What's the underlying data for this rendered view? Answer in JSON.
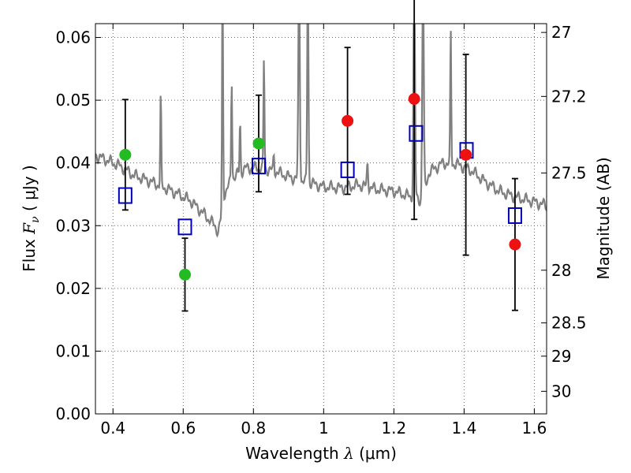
{
  "chart_data": {
    "type": "scatter",
    "xlabel_main": "Wavelength  ",
    "xlabel_lambda": "λ",
    "xlabel_unit": " (μm)",
    "ylabel_main": "Flux  ",
    "ylabel_F": "F",
    "ylabel_nu": "ν",
    "ylabel_unit": " ( μJy )",
    "y2label": "Magnitude (AB)",
    "xlim": [
      0.35,
      1.635
    ],
    "ylim": [
      0.0,
      0.0622
    ],
    "grid": true,
    "x_ticks": [
      0.4,
      0.6,
      0.8,
      1.0,
      1.2,
      1.4,
      1.6
    ],
    "x_tick_labels": [
      "0.4",
      "0.6",
      "0.8",
      "1",
      "1.2",
      "1.4",
      "1.6"
    ],
    "y_ticks": [
      0.0,
      0.01,
      0.02,
      0.03,
      0.04,
      0.05,
      0.06
    ],
    "y_tick_labels": [
      "0.00",
      "0.01",
      "0.02",
      "0.03",
      "0.04",
      "0.05",
      "0.06"
    ],
    "y2_ticks": [
      {
        "flux": 0.0608,
        "label": "27"
      },
      {
        "flux": 0.0506,
        "label": "27.2"
      },
      {
        "flux": 0.0384,
        "label": "27.5"
      },
      {
        "flux": 0.0229,
        "label": "28"
      },
      {
        "flux": 0.0145,
        "label": "28.5"
      },
      {
        "flux": 0.0092,
        "label": "29"
      },
      {
        "flux": 0.0036,
        "label": "30"
      }
    ],
    "colors": {
      "model": "#808080",
      "green": "#22bb22",
      "red": "#ee1111",
      "square": "#0000bb",
      "errorbar": "#000000",
      "grid": "#666666"
    },
    "observed_points": [
      {
        "x": 0.435,
        "y": 0.0413,
        "yerr_low": 0.0088,
        "yerr_high": 0.0088,
        "color": "green"
      },
      {
        "x": 0.605,
        "y": 0.0222,
        "yerr_low": 0.0058,
        "yerr_high": 0.0058,
        "color": "green"
      },
      {
        "x": 0.815,
        "y": 0.0431,
        "yerr_low": 0.0077,
        "yerr_high": 0.0077,
        "color": "green"
      },
      {
        "x": 1.068,
        "y": 0.0467,
        "yerr_low": 0.0117,
        "yerr_high": 0.0117,
        "color": "red"
      },
      {
        "x": 1.258,
        "y": 0.0502,
        "yerr_low": 0.0192,
        "yerr_high": 0.0192,
        "color": "red"
      },
      {
        "x": 1.405,
        "y": 0.0413,
        "yerr_low": 0.016,
        "yerr_high": 0.016,
        "color": "red"
      },
      {
        "x": 1.545,
        "y": 0.027,
        "yerr_low": 0.0105,
        "yerr_high": 0.0105,
        "color": "red"
      }
    ],
    "model_points": [
      {
        "x": 0.435,
        "y": 0.0348
      },
      {
        "x": 0.605,
        "y": 0.0298
      },
      {
        "x": 0.815,
        "y": 0.0395
      },
      {
        "x": 1.068,
        "y": 0.0389
      },
      {
        "x": 1.263,
        "y": 0.0447
      },
      {
        "x": 1.407,
        "y": 0.042
      },
      {
        "x": 1.545,
        "y": 0.0316
      }
    ],
    "model_spectrum": {
      "base": [
        [
          0.35,
          0.0412
        ],
        [
          0.38,
          0.0405
        ],
        [
          0.42,
          0.0395
        ],
        [
          0.46,
          0.038
        ],
        [
          0.5,
          0.0372
        ],
        [
          0.54,
          0.0362
        ],
        [
          0.58,
          0.0352
        ],
        [
          0.62,
          0.034
        ],
        [
          0.66,
          0.0318
        ],
        [
          0.69,
          0.03
        ],
        [
          0.7,
          0.029
        ],
        [
          0.708,
          0.0312
        ],
        [
          0.715,
          0.0348
        ],
        [
          0.74,
          0.0376
        ],
        [
          0.78,
          0.0392
        ],
        [
          0.82,
          0.0392
        ],
        [
          0.86,
          0.0387
        ],
        [
          0.9,
          0.0378
        ],
        [
          0.95,
          0.037
        ],
        [
          1.0,
          0.0362
        ],
        [
          1.05,
          0.036
        ],
        [
          1.1,
          0.0365
        ],
        [
          1.15,
          0.0358
        ],
        [
          1.2,
          0.0355
        ],
        [
          1.28,
          0.034
        ],
        [
          1.3,
          0.0385
        ],
        [
          1.34,
          0.04
        ],
        [
          1.38,
          0.0398
        ],
        [
          1.42,
          0.0388
        ],
        [
          1.46,
          0.037
        ],
        [
          1.5,
          0.0355
        ],
        [
          1.55,
          0.0345
        ],
        [
          1.6,
          0.0338
        ],
        [
          1.635,
          0.0332
        ]
      ],
      "lines": [
        {
          "x": 0.536,
          "peak": 0.0505,
          "w": 0.004
        },
        {
          "x": 0.712,
          "peak": 0.07,
          "w": 0.004
        },
        {
          "x": 0.738,
          "peak": 0.0532,
          "w": 0.004
        },
        {
          "x": 0.762,
          "peak": 0.0465,
          "w": 0.004
        },
        {
          "x": 0.83,
          "peak": 0.0565,
          "w": 0.004
        },
        {
          "x": 0.858,
          "peak": 0.0412,
          "w": 0.004
        },
        {
          "x": 0.93,
          "peak": 0.07,
          "w": 0.006
        },
        {
          "x": 0.955,
          "peak": 0.07,
          "w": 0.005
        },
        {
          "x": 1.125,
          "peak": 0.04,
          "w": 0.005
        },
        {
          "x": 1.258,
          "peak": 0.07,
          "w": 0.006
        },
        {
          "x": 1.283,
          "peak": 0.07,
          "w": 0.006
        },
        {
          "x": 1.362,
          "peak": 0.061,
          "w": 0.004
        }
      ]
    }
  }
}
